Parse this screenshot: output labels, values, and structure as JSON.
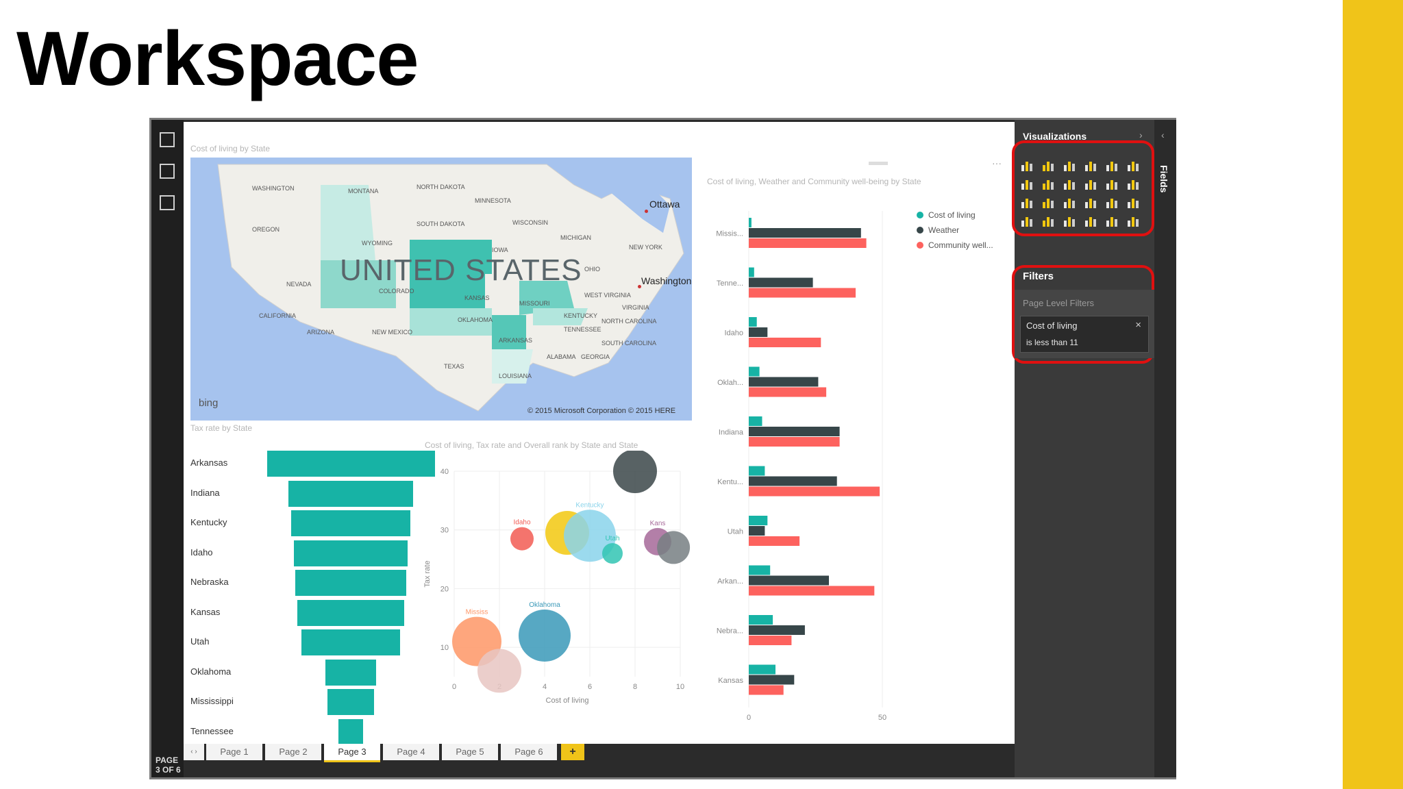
{
  "slide": {
    "title": "Workspace",
    "accent": "#f0c419"
  },
  "app": {
    "page_indicator": "PAGE 3 OF 6",
    "rail_icons": [
      "report-view-icon",
      "data-view-icon",
      "relationships-view-icon"
    ],
    "tabs": [
      "Page 1",
      "Page 2",
      "Page 3",
      "Page 4",
      "Page 5",
      "Page 6"
    ],
    "active_tab": "Page 3",
    "add_tab": "+"
  },
  "map_visual": {
    "title": "Cost of living by State",
    "country": "UNITED STATES",
    "cities": [
      "Ottawa",
      "Washington"
    ],
    "states": [
      "WASHINGTON",
      "MONTANA",
      "NORTH DAKOTA",
      "MINNESOTA",
      "OREGON",
      "SOUTH DAKOTA",
      "WISCONSIN",
      "MICHIGAN",
      "WYOMING",
      "IOWA",
      "NEW YORK",
      "NEVADA",
      "COLORADO",
      "KANSAS",
      "OHIO",
      "WEST VIRGINIA",
      "CALIFORNIA",
      "MISSOURI",
      "VIRGINIA",
      "KENTUCKY",
      "NORTH CAROLINA",
      "ARIZONA",
      "NEW MEXICO",
      "OKLAHOMA",
      "TENNESSEE",
      "SOUTH CAROLINA",
      "ARKANSAS",
      "TEXAS",
      "ALABAMA",
      "GEORGIA",
      "LOUISIANA"
    ],
    "bing_logo": "bing",
    "copyright": "© 2015 Microsoft Corporation    © 2015 HERE"
  },
  "funnel_visual": {
    "title": "Tax rate by State",
    "color": "#17b3a5",
    "chart_data": {
      "type": "bar",
      "categories": [
        "Arkansas",
        "Indiana",
        "Kentucky",
        "Idaho",
        "Nebraska",
        "Kansas",
        "Utah",
        "Oklahoma",
        "Mississippi",
        "Tennessee"
      ],
      "values": [
        100,
        74,
        71,
        68,
        66,
        64,
        59,
        30,
        28,
        15
      ]
    }
  },
  "scatter_visual": {
    "title": "Cost of living, Tax rate and Overall rank by State and State",
    "chart_data": {
      "type": "scatter",
      "xlabel": "Cost of living",
      "ylabel": "Tax rate",
      "xlim": [
        0,
        10
      ],
      "ylim": [
        5,
        40
      ],
      "x_ticks": [
        "0",
        "2",
        "4",
        "6",
        "8",
        "10"
      ],
      "y_ticks": [
        "10",
        "20",
        "30",
        "40"
      ],
      "points": [
        {
          "label": "",
          "x": 8,
          "y": 40,
          "size": 32,
          "color": "#3b4649"
        },
        {
          "label": "Idaho",
          "x": 3,
          "y": 28.5,
          "size": 17,
          "color": "#f25c54"
        },
        {
          "label": "",
          "x": 5,
          "y": 29.5,
          "size": 32,
          "color": "#f2c80f"
        },
        {
          "label": "Kentucky",
          "x": 6,
          "y": 29,
          "size": 38,
          "color": "#8ad4eb"
        },
        {
          "label": "Utah",
          "x": 7,
          "y": 26,
          "size": 15,
          "color": "#31c4b3"
        },
        {
          "label": "Kans",
          "x": 9,
          "y": 28,
          "size": 20,
          "color": "#a66999"
        },
        {
          "label": "",
          "x": 9.7,
          "y": 27,
          "size": 24,
          "color": "#777f83"
        },
        {
          "label": "Mississ",
          "x": 1,
          "y": 11,
          "size": 36,
          "color": "#fe9666"
        },
        {
          "label": "Oklahoma",
          "x": 4,
          "y": 12,
          "size": 38,
          "color": "#3a99b8"
        },
        {
          "label": "",
          "x": 2,
          "y": 6,
          "size": 32,
          "color": "#e8c5c2"
        }
      ]
    }
  },
  "bar_visual": {
    "title": "Cost of living, Weather and Community well-being by State",
    "legend": [
      {
        "name": "Cost of living",
        "color": "#17b3a5"
      },
      {
        "name": "Weather",
        "color": "#374649"
      },
      {
        "name": "Community well...",
        "color": "#fd625e"
      }
    ],
    "chart_data": {
      "type": "bar",
      "categories": [
        "Missis...",
        "Tenne...",
        "Idaho",
        "Oklah...",
        "Indiana",
        "Kentu...",
        "Utah",
        "Arkan...",
        "Nebra...",
        "Kansas"
      ],
      "x_ticks": [
        "0",
        "50"
      ],
      "xlim": [
        0,
        100
      ],
      "series": [
        {
          "name": "Cost of living",
          "values": [
            1,
            2,
            3,
            4,
            5,
            6,
            7,
            8,
            9,
            10
          ]
        },
        {
          "name": "Weather",
          "values": [
            42,
            24,
            7,
            26,
            34,
            33,
            6,
            30,
            21,
            17
          ]
        },
        {
          "name": "Community well...",
          "values": [
            44,
            40,
            27,
            29,
            34,
            49,
            19,
            47,
            16,
            13
          ]
        }
      ]
    }
  },
  "pane": {
    "visualizations_title": "Visualizations",
    "fields_label": "Fields",
    "filters_title": "Filters",
    "page_level_filters": "Page Level Filters",
    "filter": {
      "field": "Cost of living",
      "condition": "is less than 11"
    },
    "highlight_color": "#e01010"
  }
}
